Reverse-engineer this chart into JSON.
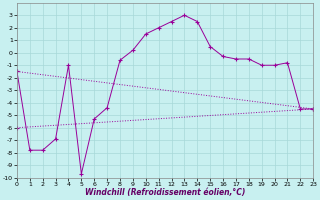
{
  "xlabel": "Windchill (Refroidissement éolien,°C)",
  "bg_color": "#c8f0f0",
  "grid_color": "#a8d8d8",
  "line_color": "#990099",
  "xlim": [
    0,
    23
  ],
  "ylim": [
    -10,
    4
  ],
  "xticks": [
    0,
    1,
    2,
    3,
    4,
    5,
    6,
    7,
    8,
    9,
    10,
    11,
    12,
    13,
    14,
    15,
    16,
    17,
    18,
    19,
    20,
    21,
    22,
    23
  ],
  "yticks": [
    -10,
    -9,
    -8,
    -7,
    -6,
    -5,
    -4,
    -3,
    -2,
    -1,
    0,
    1,
    2,
    3
  ],
  "main_x": [
    0,
    1,
    2,
    3,
    4,
    5,
    6,
    7,
    8,
    9,
    10,
    11,
    12,
    13,
    14,
    15,
    16,
    17,
    18,
    19,
    20,
    21,
    22,
    23
  ],
  "main_y": [
    -1.5,
    -7.8,
    -7.8,
    -6.9,
    -1.0,
    -9.7,
    -5.3,
    -4.4,
    -0.6,
    0.2,
    1.5,
    2.0,
    2.5,
    3.0,
    2.5,
    0.5,
    -0.3,
    -0.5,
    -0.5,
    -1.0,
    -1.0,
    -0.8,
    -4.5,
    -4.5
  ],
  "trend1_x": [
    0,
    23
  ],
  "trend1_y": [
    -1.5,
    -4.5
  ],
  "trend2_x": [
    0,
    23
  ],
  "trend2_y": [
    -6.0,
    -4.5
  ]
}
